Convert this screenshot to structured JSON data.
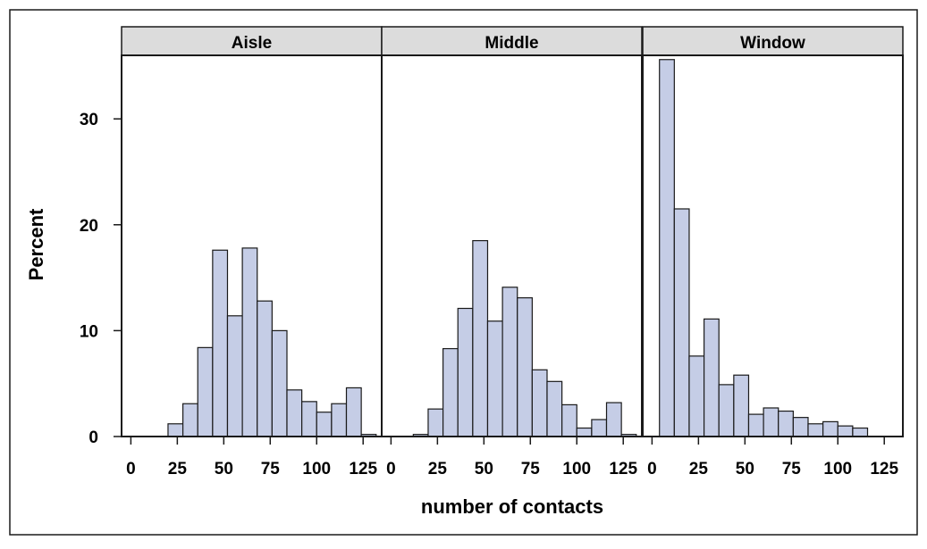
{
  "chart_data": {
    "type": "bar",
    "subtype": "histogram-panel",
    "xlabel": "number of contacts",
    "ylabel": "Percent",
    "xlim": [
      -5,
      135
    ],
    "ylim": [
      0,
      36
    ],
    "x_ticks": [
      "0",
      "25",
      "50",
      "75",
      "100",
      "125"
    ],
    "y_ticks": [
      "0",
      "10",
      "20",
      "30"
    ],
    "bin_width": 8,
    "bar_color": "#c5cde6",
    "strip_color": "#dcdcdc",
    "grid": false,
    "panels": [
      {
        "label": "Aisle",
        "bin_centers": [
          0,
          8,
          16,
          24,
          32,
          40,
          48,
          56,
          64,
          72,
          80,
          88,
          96,
          104,
          112,
          120,
          128
        ],
        "values": [
          0,
          0,
          0,
          1.2,
          3.1,
          8.4,
          17.6,
          11.4,
          17.8,
          12.8,
          10.0,
          4.4,
          3.3,
          2.3,
          3.1,
          4.6,
          0.2
        ]
      },
      {
        "label": "Middle",
        "bin_centers": [
          0,
          8,
          16,
          24,
          32,
          40,
          48,
          56,
          64,
          72,
          80,
          88,
          96,
          104,
          112,
          120,
          128
        ],
        "values": [
          0,
          0,
          0.2,
          2.6,
          8.3,
          12.1,
          18.5,
          10.9,
          14.1,
          13.1,
          6.3,
          5.2,
          3.0,
          0.8,
          1.6,
          3.2,
          0.2
        ]
      },
      {
        "label": "Window",
        "bin_centers": [
          8,
          16,
          24,
          32,
          40,
          48,
          56,
          64,
          72,
          80,
          88,
          96,
          104,
          112
        ],
        "values": [
          35.6,
          21.5,
          7.6,
          11.1,
          4.9,
          5.8,
          2.1,
          2.7,
          2.4,
          1.8,
          1.2,
          1.4,
          1.0,
          0.8
        ]
      }
    ]
  }
}
